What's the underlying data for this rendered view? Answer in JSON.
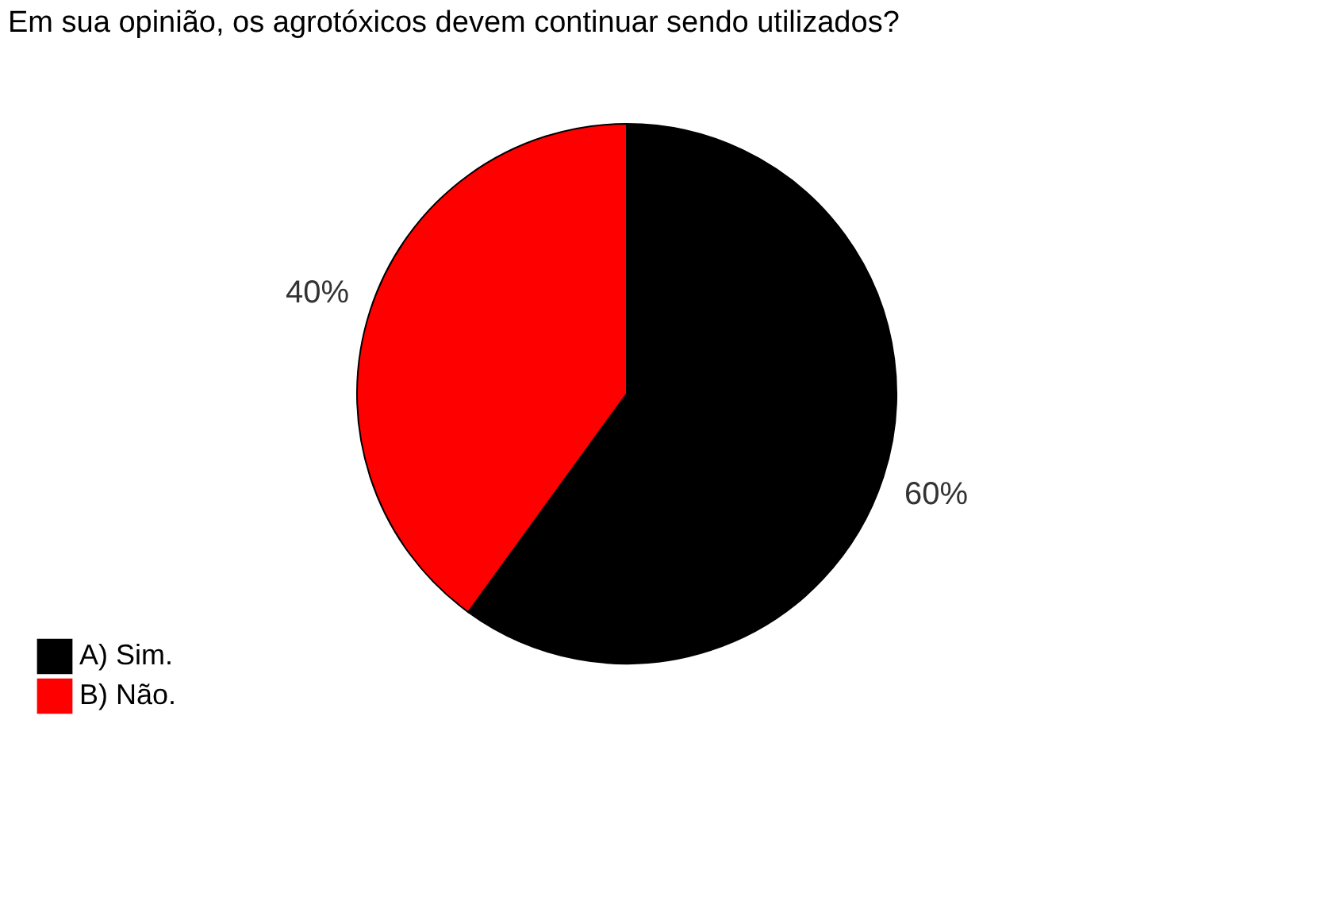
{
  "chart_data": {
    "type": "pie",
    "title": "Em sua opinião, os agrotóxicos devem continuar sendo utilizados?",
    "categories": [
      "A) Sim.",
      "B) Não."
    ],
    "values": [
      60,
      40
    ],
    "colors": [
      "#000000",
      "#ff0000"
    ],
    "value_labels": [
      "60%",
      "40%"
    ],
    "legend": "bottom left"
  }
}
